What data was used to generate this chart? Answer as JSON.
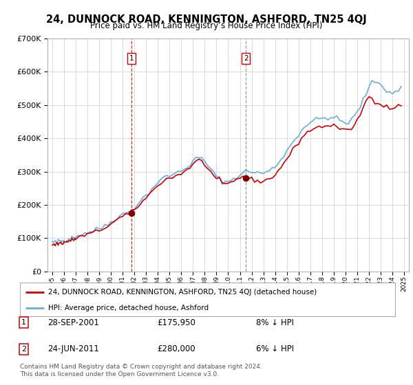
{
  "title": "24, DUNNOCK ROAD, KENNINGTON, ASHFORD, TN25 4QJ",
  "subtitle": "Price paid vs. HM Land Registry’s House Price Index (HPI)",
  "background_color": "#ffffff",
  "plot_bg_color": "#ffffff",
  "grid_color": "#cccccc",
  "hpi_shading_color": "#cce0f5",
  "legend_entry1": "24, DUNNOCK ROAD, KENNINGTON, ASHFORD, TN25 4QJ (detached house)",
  "legend_entry2": "HPI: Average price, detached house, Ashford",
  "footer": "Contains HM Land Registry data © Crown copyright and database right 2024.\nThis data is licensed under the Open Government Licence v3.0.",
  "hpi_line_color": "#6baed6",
  "price_line_color": "#cc0000",
  "sale_dot_color": "#800000",
  "sale1_vline_color": "#cc0000",
  "sale2_vline_color": "#888888",
  "ylim": [
    0,
    700000
  ],
  "yticks": [
    0,
    100000,
    200000,
    300000,
    400000,
    500000,
    600000,
    700000
  ],
  "sale1_x": 2001.75,
  "sale2_x": 2011.5,
  "sale1_price": 175950,
  "sale2_price": 280000,
  "hpi_x": [
    1995.0,
    1995.083,
    1995.167,
    1995.25,
    1995.333,
    1995.417,
    1995.5,
    1995.583,
    1995.667,
    1995.75,
    1995.833,
    1995.917,
    1996.0,
    1996.083,
    1996.167,
    1996.25,
    1996.333,
    1996.417,
    1996.5,
    1996.583,
    1996.667,
    1996.75,
    1996.833,
    1996.917,
    1997.0,
    1997.25,
    1997.5,
    1997.75,
    1998.0,
    1998.25,
    1998.5,
    1998.75,
    1999.0,
    1999.25,
    1999.5,
    1999.75,
    2000.0,
    2000.25,
    2000.5,
    2000.75,
    2001.0,
    2001.25,
    2001.5,
    2001.75,
    2002.0,
    2002.25,
    2002.5,
    2002.75,
    2003.0,
    2003.25,
    2003.5,
    2003.75,
    2004.0,
    2004.25,
    2004.5,
    2004.75,
    2005.0,
    2005.25,
    2005.5,
    2005.75,
    2006.0,
    2006.25,
    2006.5,
    2006.75,
    2007.0,
    2007.25,
    2007.5,
    2007.75,
    2008.0,
    2008.25,
    2008.5,
    2008.75,
    2009.0,
    2009.25,
    2009.5,
    2009.75,
    2010.0,
    2010.25,
    2010.5,
    2010.75,
    2011.0,
    2011.25,
    2011.5,
    2011.75,
    2012.0,
    2012.25,
    2012.5,
    2012.75,
    2013.0,
    2013.25,
    2013.5,
    2013.75,
    2014.0,
    2014.25,
    2014.5,
    2014.75,
    2015.0,
    2015.25,
    2015.5,
    2015.75,
    2016.0,
    2016.25,
    2016.5,
    2016.75,
    2017.0,
    2017.25,
    2017.5,
    2017.75,
    2018.0,
    2018.25,
    2018.5,
    2018.75,
    2019.0,
    2019.25,
    2019.5,
    2019.75,
    2020.0,
    2020.25,
    2020.5,
    2020.75,
    2021.0,
    2021.25,
    2021.5,
    2021.75,
    2022.0,
    2022.25,
    2022.5,
    2022.75,
    2023.0,
    2023.25,
    2023.5,
    2023.75,
    2024.0,
    2024.25,
    2024.5,
    2024.75
  ],
  "hpi_y": [
    88000,
    87000,
    86500,
    87000,
    88000,
    89000,
    90000,
    91000,
    90500,
    91000,
    91500,
    92000,
    93000,
    93500,
    94000,
    95000,
    96000,
    97000,
    98000,
    99000,
    100000,
    101000,
    102000,
    103000,
    105000,
    108000,
    111000,
    114000,
    117000,
    120000,
    122000,
    125000,
    128000,
    133000,
    138000,
    143000,
    149000,
    155000,
    161000,
    166000,
    171000,
    175000,
    179000,
    183000,
    192000,
    202000,
    212000,
    220000,
    228000,
    238000,
    248000,
    258000,
    268000,
    275000,
    280000,
    285000,
    288000,
    292000,
    295000,
    298000,
    302000,
    308000,
    315000,
    322000,
    330000,
    338000,
    342000,
    338000,
    330000,
    320000,
    308000,
    295000,
    285000,
    278000,
    272000,
    268000,
    270000,
    275000,
    280000,
    285000,
    290000,
    295000,
    300000,
    302000,
    300000,
    298000,
    296000,
    295000,
    296000,
    298000,
    302000,
    308000,
    315000,
    325000,
    338000,
    350000,
    362000,
    375000,
    388000,
    400000,
    412000,
    425000,
    435000,
    442000,
    448000,
    452000,
    455000,
    458000,
    460000,
    462000,
    463000,
    462000,
    461000,
    458000,
    455000,
    450000,
    445000,
    448000,
    455000,
    465000,
    478000,
    495000,
    515000,
    535000,
    552000,
    565000,
    572000,
    570000,
    562000,
    552000,
    545000,
    540000,
    538000,
    540000,
    545000,
    550000
  ],
  "price_x": [
    1995.0,
    1995.083,
    1995.167,
    1995.25,
    1995.333,
    1995.417,
    1995.5,
    1995.583,
    1995.667,
    1995.75,
    1995.833,
    1995.917,
    1996.0,
    1996.083,
    1996.167,
    1996.25,
    1996.333,
    1996.417,
    1996.5,
    1996.583,
    1996.667,
    1996.75,
    1996.833,
    1996.917,
    1997.0,
    1997.25,
    1997.5,
    1997.75,
    1998.0,
    1998.25,
    1998.5,
    1998.75,
    1999.0,
    1999.25,
    1999.5,
    1999.75,
    2000.0,
    2000.25,
    2000.5,
    2000.75,
    2001.0,
    2001.25,
    2001.5,
    2001.75,
    2002.0,
    2002.25,
    2002.5,
    2002.75,
    2003.0,
    2003.25,
    2003.5,
    2003.75,
    2004.0,
    2004.25,
    2004.5,
    2004.75,
    2005.0,
    2005.25,
    2005.5,
    2005.75,
    2006.0,
    2006.25,
    2006.5,
    2006.75,
    2007.0,
    2007.25,
    2007.5,
    2007.75,
    2008.0,
    2008.25,
    2008.5,
    2008.75,
    2009.0,
    2009.25,
    2009.5,
    2009.75,
    2010.0,
    2010.25,
    2010.5,
    2010.75,
    2011.0,
    2011.25,
    2011.5,
    2011.75,
    2012.0,
    2012.25,
    2012.5,
    2012.75,
    2013.0,
    2013.25,
    2013.5,
    2013.75,
    2014.0,
    2014.25,
    2014.5,
    2014.75,
    2015.0,
    2015.25,
    2015.5,
    2015.75,
    2016.0,
    2016.25,
    2016.5,
    2016.75,
    2017.0,
    2017.25,
    2017.5,
    2017.75,
    2018.0,
    2018.25,
    2018.5,
    2018.75,
    2019.0,
    2019.25,
    2019.5,
    2019.75,
    2020.0,
    2020.25,
    2020.5,
    2020.75,
    2021.0,
    2021.25,
    2021.5,
    2021.75,
    2022.0,
    2022.25,
    2022.5,
    2022.75,
    2023.0,
    2023.25,
    2023.5,
    2023.75,
    2024.0,
    2024.25,
    2024.5,
    2024.75
  ],
  "price_y": [
    82000,
    81000,
    80500,
    81000,
    82000,
    83000,
    84000,
    85000,
    84500,
    85000,
    85500,
    86000,
    87000,
    87500,
    88000,
    89000,
    90000,
    91000,
    92000,
    93000,
    94000,
    95000,
    96000,
    97000,
    99000,
    102000,
    105000,
    108000,
    111000,
    114000,
    116000,
    119000,
    122000,
    127000,
    132000,
    137000,
    143000,
    149000,
    155000,
    160000,
    165000,
    169000,
    173000,
    175950,
    184000,
    194000,
    204000,
    212000,
    220000,
    230000,
    240000,
    250000,
    260000,
    267000,
    272000,
    277000,
    280000,
    284000,
    287000,
    290000,
    294000,
    300000,
    307000,
    314000,
    322000,
    330000,
    334000,
    330000,
    322000,
    312000,
    300000,
    287000,
    277000,
    270000,
    264000,
    260000,
    262000,
    267000,
    272000,
    277000,
    282000,
    287000,
    280000,
    278000,
    276000,
    274000,
    272000,
    271000,
    272000,
    274000,
    278000,
    284000,
    291000,
    301000,
    314000,
    326000,
    338000,
    351000,
    364000,
    376000,
    388000,
    401000,
    411000,
    418000,
    424000,
    428000,
    431000,
    434000,
    436000,
    438000,
    439000,
    438000,
    437000,
    434000,
    431000,
    426000,
    421000,
    424000,
    431000,
    441000,
    454000,
    471000,
    491000,
    511000,
    528000,
    521000,
    514000,
    508000,
    502000,
    498000,
    495000,
    492000,
    490000,
    492000,
    497000,
    502000
  ]
}
